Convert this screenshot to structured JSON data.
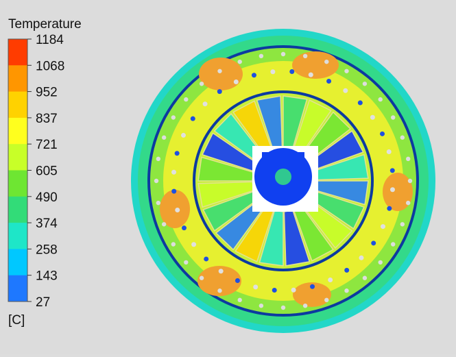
{
  "legend": {
    "title": "Temperature",
    "labels": [
      1184,
      1068,
      952,
      837,
      721,
      605,
      490,
      374,
      258,
      143,
      27
    ],
    "colors": [
      "#ff3c00",
      "#ff9600",
      "#ffd200",
      "#ffff1e",
      "#c8ff28",
      "#6ee632",
      "#32dc78",
      "#1ee6c8",
      "#00c8ff",
      "#1e78ff",
      "#0a32ff"
    ],
    "unit": "[C]"
  }
}
